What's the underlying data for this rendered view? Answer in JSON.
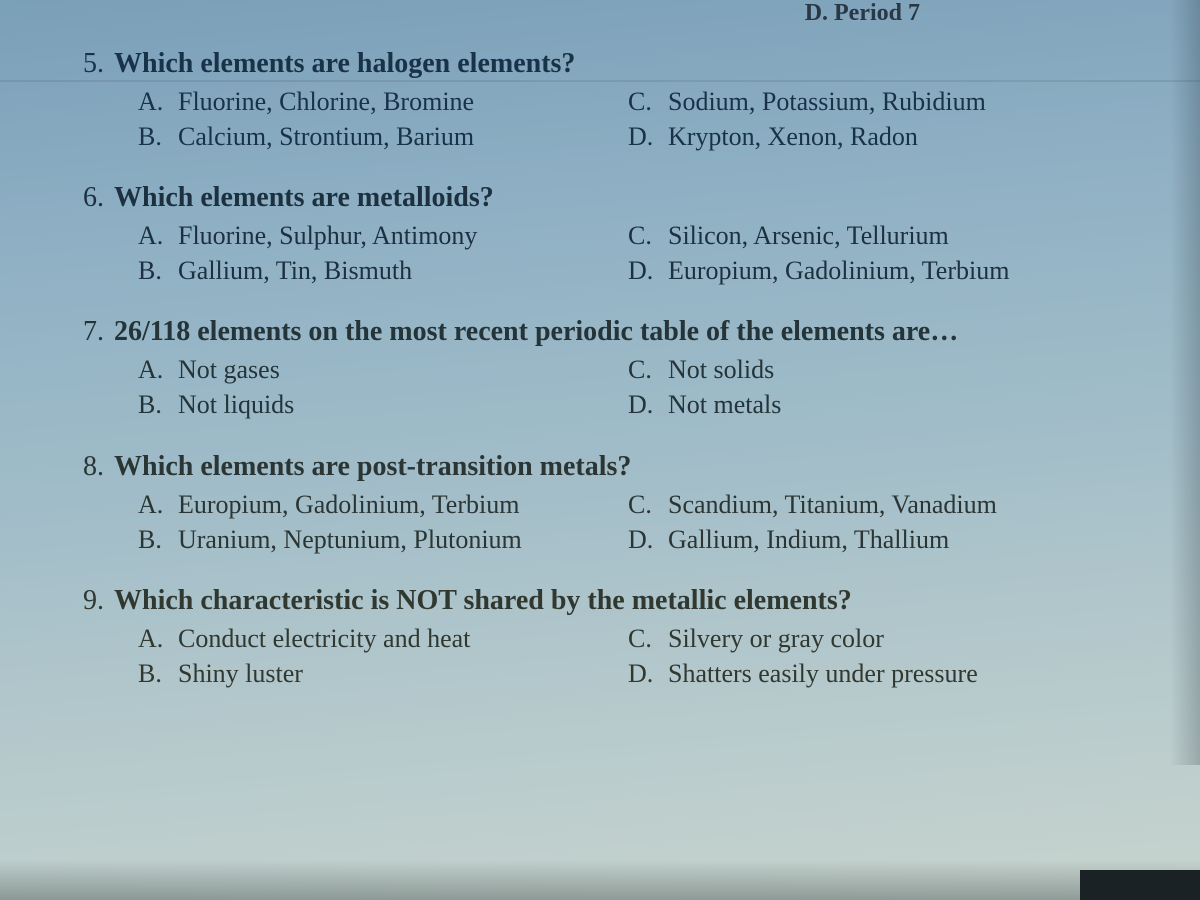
{
  "page": {
    "top_fragment": "D. Period 7",
    "background_gradient": [
      "#7a9fb8",
      "#8fb0c4",
      "#a0bcc8",
      "#b5c9cc",
      "#c8d4ce"
    ],
    "text_color": "#1a2838",
    "font_family": "Times New Roman",
    "question_fontsize": 28,
    "option_fontsize": 26
  },
  "questions": [
    {
      "num": "5.",
      "text": "Which elements are halogen elements?",
      "options_left": [
        {
          "letter": "A.",
          "text": "Fluorine, Chlorine, Bromine"
        },
        {
          "letter": "B.",
          "text": "Calcium, Strontium, Barium"
        }
      ],
      "options_right": [
        {
          "letter": "C.",
          "text": "Sodium, Potassium, Rubidium"
        },
        {
          "letter": "D.",
          "text": "Krypton, Xenon, Radon"
        }
      ]
    },
    {
      "num": "6.",
      "text": "Which elements are metalloids?",
      "options_left": [
        {
          "letter": "A.",
          "text": "Fluorine, Sulphur, Antimony"
        },
        {
          "letter": "B.",
          "text": "Gallium, Tin, Bismuth"
        }
      ],
      "options_right": [
        {
          "letter": "C.",
          "text": "Silicon, Arsenic, Tellurium"
        },
        {
          "letter": "D.",
          "text": "Europium, Gadolinium, Terbium"
        }
      ]
    },
    {
      "num": "7.",
      "text": "26/118 elements on the most recent periodic table of the elements are…",
      "options_left": [
        {
          "letter": "A.",
          "text": "Not gases"
        },
        {
          "letter": "B.",
          "text": "Not liquids"
        }
      ],
      "options_right": [
        {
          "letter": "C.",
          "text": "Not solids"
        },
        {
          "letter": "D.",
          "text": "Not metals"
        }
      ]
    },
    {
      "num": "8.",
      "text": "Which elements are post-transition metals?",
      "options_left": [
        {
          "letter": "A.",
          "text": "Europium, Gadolinium, Terbium"
        },
        {
          "letter": "B.",
          "text": "Uranium, Neptunium, Plutonium"
        }
      ],
      "options_right": [
        {
          "letter": "C.",
          "text": "Scandium, Titanium, Vanadium"
        },
        {
          "letter": "D.",
          "text": "Gallium, Indium, Thallium"
        }
      ]
    },
    {
      "num": "9.",
      "text": "Which characteristic is NOT shared by the metallic elements?",
      "options_left": [
        {
          "letter": "A.",
          "text": "Conduct electricity and heat"
        },
        {
          "letter": "B.",
          "text": "Shiny luster"
        }
      ],
      "options_right": [
        {
          "letter": "C.",
          "text": "Silvery or gray color"
        },
        {
          "letter": "D.",
          "text": "Shatters easily under pressure"
        }
      ]
    }
  ]
}
